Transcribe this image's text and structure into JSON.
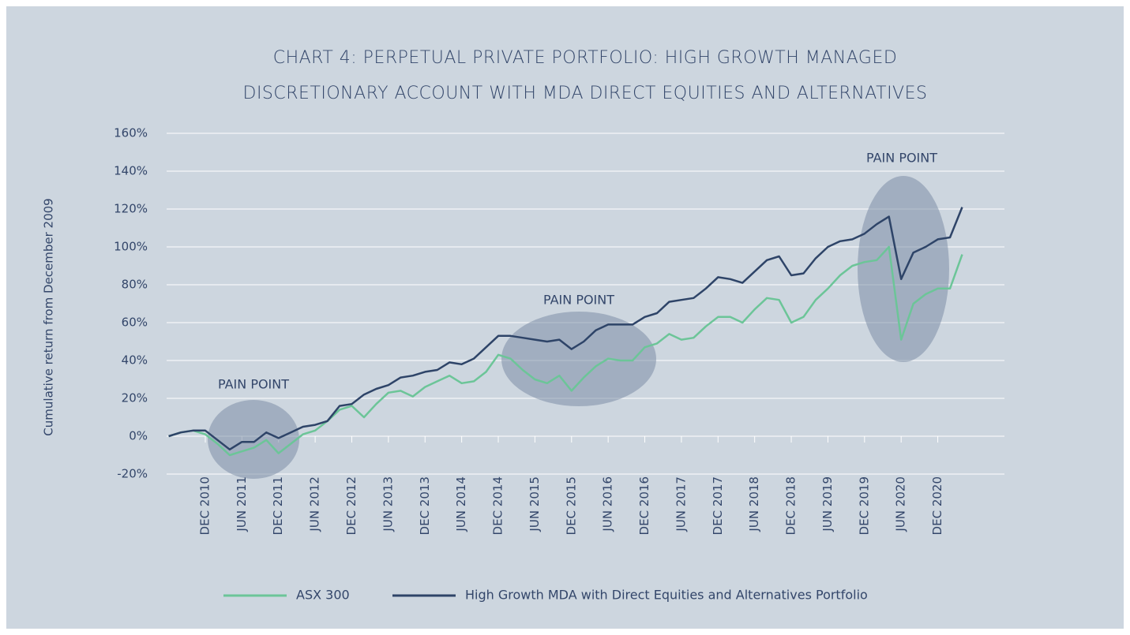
{
  "chart_data": {
    "type": "line",
    "title": [
      "CHART 4: PERPETUAL PRIVATE PORTFOLIO: HIGH GROWTH MANAGED",
      "DISCRETIONARY ACCOUNT WITH MDA DIRECT EQUITIES AND ALTERNATIVES"
    ],
    "y_label": "Cumulative return from December 2009",
    "annotations": [
      "PAIN POINT",
      "PAIN POINT",
      "PAIN POINT"
    ],
    "categories": [
      null,
      null,
      null,
      "DEC 2010",
      null,
      null,
      "JUN 2011",
      null,
      null,
      "DEC 2011",
      null,
      null,
      "JUN 2012",
      null,
      null,
      "DEC 2012",
      null,
      null,
      "JUN 2013",
      null,
      null,
      "DEC 2013",
      null,
      null,
      "JUN 2014",
      null,
      null,
      "DEC 2014",
      null,
      null,
      "JUN 2015",
      null,
      null,
      "DEC 2015",
      null,
      null,
      "JUN 2016",
      null,
      null,
      "DEC 2016",
      null,
      null,
      "JUN 2017",
      null,
      null,
      "DEC 2017",
      null,
      null,
      "JUN 2018",
      null,
      null,
      "DEC 2018",
      null,
      null,
      "JUN 2019",
      null,
      null,
      "DEC 2019",
      null,
      null,
      "JUN 2020",
      null,
      null,
      "DEC 2020",
      null,
      null
    ],
    "series": [
      {
        "name": "ASX 300",
        "color": "#6cc598",
        "values": [
          0,
          2,
          3,
          1,
          -4,
          -10,
          -8,
          -6,
          -2,
          -9,
          -4,
          1,
          3,
          8,
          14,
          16,
          10,
          17,
          23,
          24,
          21,
          26,
          29,
          32,
          28,
          29,
          34,
          43,
          41,
          35,
          30,
          28,
          32,
          24,
          31,
          37,
          41,
          40,
          40,
          47,
          49,
          54,
          51,
          52,
          58,
          63,
          63,
          60,
          67,
          73,
          72,
          60,
          63,
          72,
          78,
          85,
          90,
          92,
          93,
          100,
          51,
          70,
          75,
          78,
          78,
          96
        ]
      },
      {
        "name": "High Growth MDA with Direct Equities and Alternatives Portfolio",
        "color": "#2e4468",
        "values": [
          0,
          2,
          3,
          3,
          -2,
          -7,
          -3,
          -3,
          2,
          -1,
          2,
          5,
          6,
          8,
          16,
          17,
          22,
          25,
          27,
          31,
          32,
          34,
          35,
          39,
          38,
          41,
          47,
          53,
          53,
          52,
          51,
          50,
          51,
          46,
          50,
          56,
          59,
          59,
          59,
          63,
          65,
          71,
          72,
          73,
          78,
          84,
          83,
          81,
          87,
          93,
          95,
          85,
          86,
          94,
          100,
          103,
          104,
          107,
          112,
          116,
          83,
          97,
          100,
          104,
          105,
          121
        ]
      }
    ],
    "ylim": [
      -20,
      160
    ],
    "yticks": [
      {
        "value": -20,
        "label": "-20%"
      },
      {
        "value": 0,
        "label": "0%"
      },
      {
        "value": 20,
        "label": "20%"
      },
      {
        "value": 40,
        "label": "40%"
      },
      {
        "value": 60,
        "label": "60%"
      },
      {
        "value": 80,
        "label": "80%"
      },
      {
        "value": 100,
        "label": "100%"
      },
      {
        "value": 120,
        "label": "120%"
      },
      {
        "value": 140,
        "label": "140%"
      },
      {
        "value": 160,
        "label": "160%"
      }
    ],
    "grid": true
  }
}
